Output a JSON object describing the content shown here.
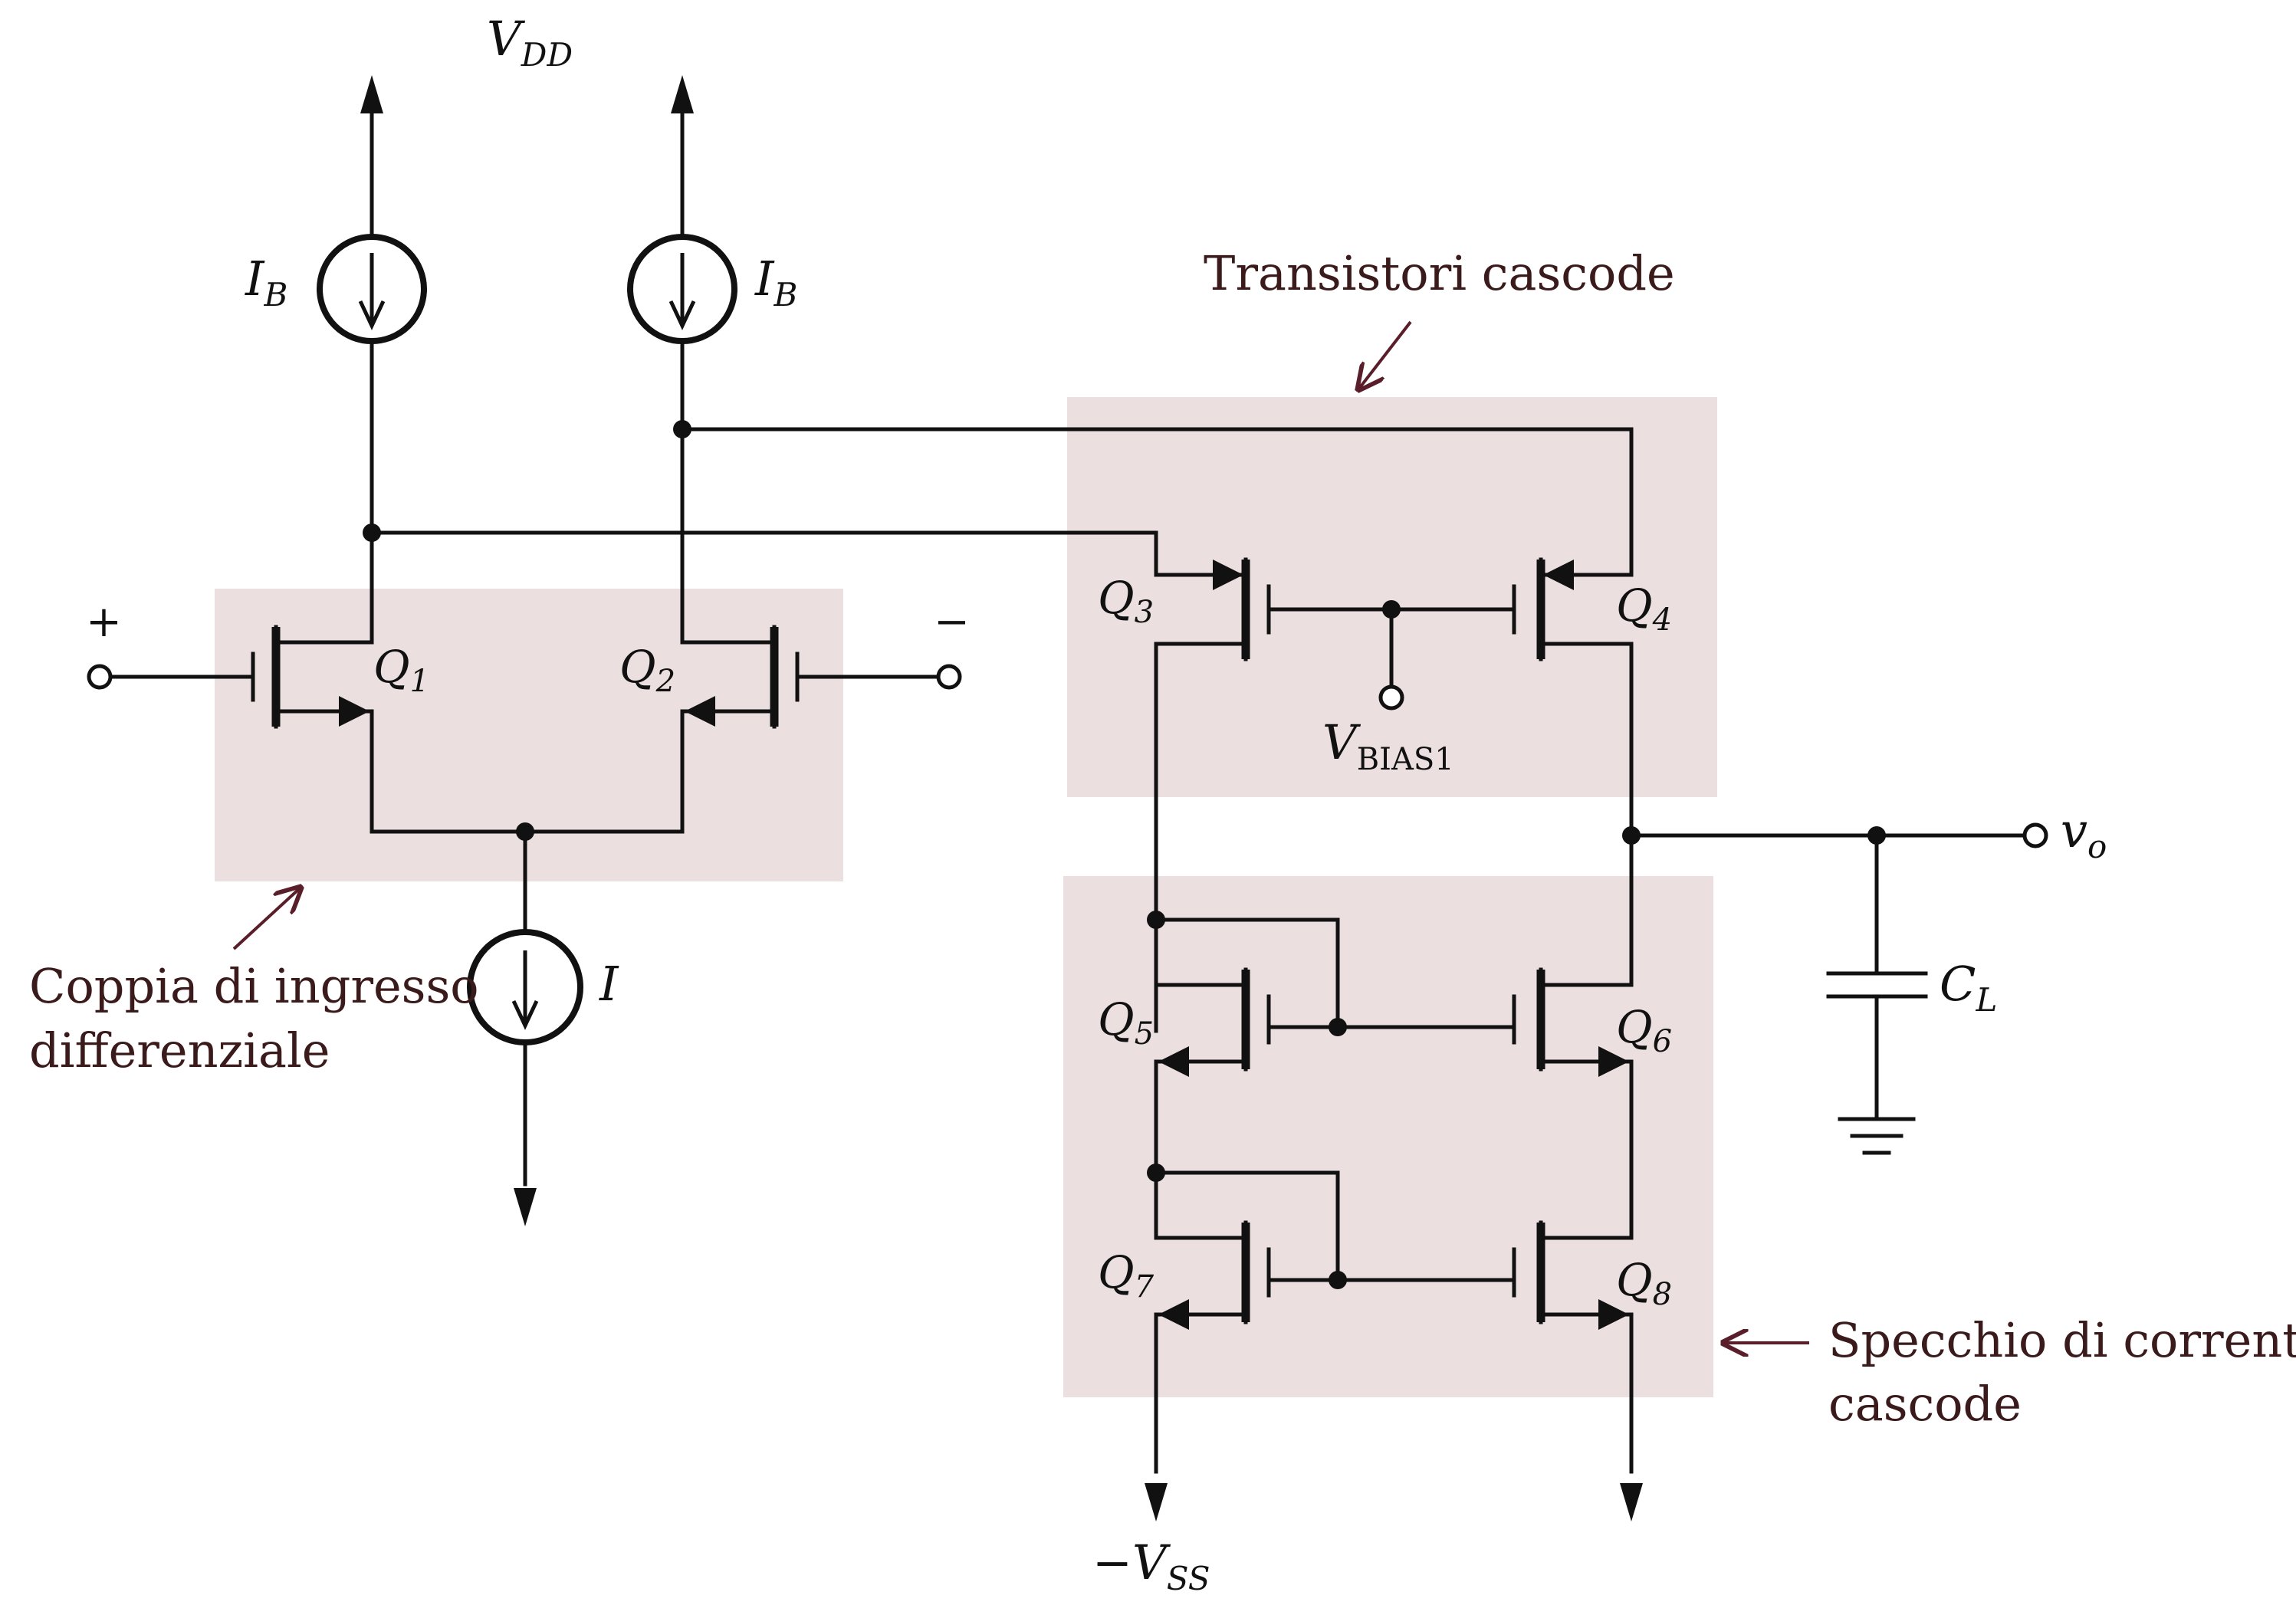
{
  "colors": {
    "wire": "#111111",
    "highlight": "#ecdfdf",
    "annotation_arrow": "#5a1e2a",
    "annotation_text": "#3a1a1a"
  },
  "labels": {
    "vdd": {
      "main": "V",
      "sub": "DD"
    },
    "ib_left": {
      "main": "I",
      "sub": "B"
    },
    "ib_right": {
      "main": "I",
      "sub": "B"
    },
    "tail_current": "I",
    "plus_input": "+",
    "minus_input": "−",
    "q1": {
      "main": "Q",
      "sub": "1"
    },
    "q2": {
      "main": "Q",
      "sub": "2"
    },
    "q3": {
      "main": "Q",
      "sub": "3"
    },
    "q4": {
      "main": "Q",
      "sub": "4"
    },
    "q5": {
      "main": "Q",
      "sub": "5"
    },
    "q6": {
      "main": "Q",
      "sub": "6"
    },
    "q7": {
      "main": "Q",
      "sub": "7"
    },
    "q8": {
      "main": "Q",
      "sub": "8"
    },
    "vbias": {
      "main": "V",
      "sub": "BIAS1"
    },
    "vo": {
      "main": "v",
      "sub": "o"
    },
    "cl": {
      "main": "C",
      "sub": "L"
    },
    "vss": {
      "main": "−V",
      "sub": "SS"
    }
  },
  "annotations": {
    "cascode_transistors": "Transistori cascode",
    "diff_pair_line1": "Coppia di ingresso",
    "diff_pair_line2": "differenziale",
    "mirror_line1": "Specchio di corrente",
    "mirror_line2": "cascode"
  }
}
